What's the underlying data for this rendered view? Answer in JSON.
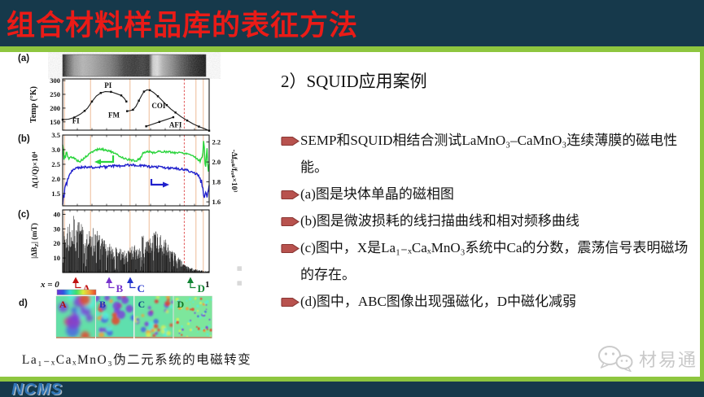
{
  "slide": {
    "header": {
      "title": "组合材料样品库的表征方法"
    },
    "footer": {
      "logo": "NCMS"
    },
    "watermark": {
      "label": "材易通"
    },
    "artifacts": [
      "▦",
      "▦"
    ],
    "colors": {
      "header_bg": "#16394b",
      "accent_green": "#8ec63f",
      "title_red": "#ea1b17",
      "bullet_red": "#b8524e",
      "bullet_border": "#8a3734",
      "logo_blue": "#2f74b5",
      "wm_gray": "#c9c9c9"
    }
  },
  "right_panel": {
    "heading": "2）SQUID应用案例",
    "bullets": [
      {
        "text": "SEMP和SQUID相结合测试LaMnO₃–CaMnO₃连续薄膜的磁电性能。"
      },
      {
        "text": "(a)图是块体单晶的磁相图"
      },
      {
        "text": "(b)图是微波损耗的线扫描曲线和相对频移曲线"
      },
      {
        "text": "(c)图中，X是La₁₋ₓCaₓMnO₃系统中Ca的分数，震荡信号表明磁场的存在。"
      },
      {
        "text": "(d)图中，ABC图像出现强磁化，D中磁化减弱"
      }
    ]
  },
  "figure": {
    "panel_labels": [
      "(a)",
      "(b)",
      "(c)",
      "d)"
    ],
    "caption": "La₁₋ₓCaₓMnO₃伪二元系统的电磁转变",
    "photo_stops": [
      [
        0,
        "#111111"
      ],
      [
        0.03,
        "#555555"
      ],
      [
        0.08,
        "#9a9a9a"
      ],
      [
        0.14,
        "#b5b5b5"
      ],
      [
        0.2,
        "#a8a8a8"
      ],
      [
        0.27,
        "#909090"
      ],
      [
        0.33,
        "#7a7a7a"
      ],
      [
        0.38,
        "#5f5f5f"
      ],
      [
        0.43,
        "#3c3c3c"
      ],
      [
        0.5,
        "#303030"
      ],
      [
        0.56,
        "#3a3a3a"
      ],
      [
        0.6,
        "#2c2c2c"
      ],
      [
        0.63,
        "#cfcfcf"
      ],
      [
        0.66,
        "#e0e0e0"
      ],
      [
        0.7,
        "#b0b0b0"
      ],
      [
        0.76,
        "#8a8a8a"
      ],
      [
        0.83,
        "#565656"
      ],
      [
        0.9,
        "#2e2e2e"
      ],
      [
        0.96,
        "#191919"
      ],
      [
        1,
        "#0d0d0d"
      ]
    ],
    "vlines": {
      "orange": [
        0.012,
        0.19,
        0.46,
        0.59,
        0.91,
        0.96
      ],
      "red_dashed": [
        0.83
      ]
    }
  },
  "chart_data": [
    {
      "panel": "a",
      "type": "line",
      "description": "块体单晶磁相图 (magnetic phase diagram)",
      "ylabel": "Temp (°K)",
      "yticks": [
        150,
        200,
        250,
        300
      ],
      "ylim": [
        120,
        306
      ],
      "xlim": [
        0,
        1
      ],
      "series": [
        {
          "name": "phase-boundary-1",
          "points": [
            [
              0,
              158
            ],
            [
              0.04,
              160
            ],
            [
              0.08,
              166
            ],
            [
              0.12,
              178
            ],
            [
              0.15,
              190
            ],
            [
              0.17,
              200
            ],
            [
              0.2,
              224
            ],
            [
              0.23,
              244
            ],
            [
              0.26,
              255
            ],
            [
              0.29,
              260
            ],
            [
              0.33,
              259
            ],
            [
              0.37,
              252
            ],
            [
              0.4,
              246
            ],
            [
              0.42,
              236
            ],
            [
              0.435,
              224
            ]
          ]
        },
        {
          "name": "phase-boundary-2",
          "points": [
            [
              0.44,
              189
            ],
            [
              0.46,
              191
            ],
            [
              0.48,
              194
            ],
            [
              0.5,
              206
            ],
            [
              0.52,
              227
            ],
            [
              0.54,
              247
            ],
            [
              0.555,
              260
            ],
            [
              0.575,
              266
            ],
            [
              0.595,
              265
            ],
            [
              0.62,
              257
            ],
            [
              0.65,
              243
            ],
            [
              0.68,
              227
            ],
            [
              0.71,
              211
            ],
            [
              0.74,
              196
            ],
            [
              0.77,
              184
            ],
            [
              0.81,
              168
            ],
            [
              0.85,
              155
            ],
            [
              0.89,
              143
            ],
            [
              0.93,
              133
            ],
            [
              0.97,
              125
            ],
            [
              1,
              118
            ]
          ]
        },
        {
          "name": "afi-boundary",
          "points": [
            [
              0.57,
              134
            ],
            [
              0.61,
              141
            ],
            [
              0.66,
              150
            ],
            [
              0.71,
              159
            ],
            [
              0.755,
              167
            ]
          ]
        }
      ],
      "phase_labels": [
        {
          "text": "FI",
          "x": 0.09,
          "T": 145
        },
        {
          "text": "PI",
          "x": 0.31,
          "T": 274
        },
        {
          "text": "FM",
          "x": 0.35,
          "T": 166
        },
        {
          "text": "COI",
          "x": 0.655,
          "T": 200
        },
        {
          "text": "AFI",
          "x": 0.77,
          "T": 131
        }
      ]
    },
    {
      "panel": "b",
      "type": "line",
      "description": "微波损耗线扫描曲线与相对频移曲线",
      "ylabel_left": "Δ(1/Q)×10⁴",
      "yticks_left": [
        1.5,
        2.0,
        2.5,
        3.0,
        3.5
      ],
      "ylim_left": [
        1.08,
        3.5
      ],
      "ylabel_right": "-Δfᵣₑₛ/fᵣₑₛ×10³",
      "yticks_right": [
        1.6,
        1.8,
        2.0,
        2.2
      ],
      "ylim_right": [
        1.56,
        2.27
      ],
      "series": [
        {
          "name": "microwave-loss",
          "axis": "left",
          "color": "#2ad43c",
          "points": [
            [
              0,
              3.12
            ],
            [
              0.01,
              2.72
            ],
            [
              0.025,
              2.9
            ],
            [
              0.04,
              2.68
            ],
            [
              0.06,
              2.76
            ],
            [
              0.08,
              2.7
            ],
            [
              0.1,
              2.63
            ],
            [
              0.12,
              2.6
            ],
            [
              0.14,
              2.68
            ],
            [
              0.17,
              2.8
            ],
            [
              0.2,
              2.92
            ],
            [
              0.23,
              3.0
            ],
            [
              0.26,
              3.02
            ],
            [
              0.29,
              2.99
            ],
            [
              0.32,
              2.96
            ],
            [
              0.35,
              2.88
            ],
            [
              0.38,
              2.8
            ],
            [
              0.41,
              2.73
            ],
            [
              0.44,
              2.67
            ],
            [
              0.47,
              2.64
            ],
            [
              0.5,
              2.62
            ],
            [
              0.53,
              2.7
            ],
            [
              0.55,
              2.9
            ],
            [
              0.58,
              2.94
            ],
            [
              0.61,
              2.9
            ],
            [
              0.64,
              2.92
            ],
            [
              0.68,
              2.94
            ],
            [
              0.72,
              2.92
            ],
            [
              0.76,
              2.9
            ],
            [
              0.8,
              2.9
            ],
            [
              0.84,
              2.88
            ],
            [
              0.87,
              2.84
            ],
            [
              0.9,
              2.76
            ],
            [
              0.92,
              2.68
            ],
            [
              0.94,
              2.6
            ],
            [
              0.955,
              2.9
            ],
            [
              0.965,
              3.28
            ],
            [
              0.975,
              2.3
            ],
            [
              0.985,
              3.05
            ],
            [
              0.993,
              2.2
            ],
            [
              1,
              2.6
            ]
          ]
        },
        {
          "name": "relative-frequency-shift",
          "axis": "right",
          "color": "#2020cc",
          "points": [
            [
              0,
              1.6
            ],
            [
              0.01,
              1.68
            ],
            [
              0.02,
              1.75
            ],
            [
              0.035,
              1.83
            ],
            [
              0.05,
              1.88
            ],
            [
              0.07,
              1.92
            ],
            [
              0.1,
              1.94
            ],
            [
              0.14,
              1.95
            ],
            [
              0.18,
              1.95
            ],
            [
              0.22,
              1.94
            ],
            [
              0.26,
              1.95
            ],
            [
              0.3,
              1.95
            ],
            [
              0.35,
              1.96
            ],
            [
              0.4,
              1.96
            ],
            [
              0.45,
              1.97
            ],
            [
              0.5,
              1.97
            ],
            [
              0.55,
              1.96
            ],
            [
              0.6,
              1.95
            ],
            [
              0.65,
              1.95
            ],
            [
              0.7,
              1.94
            ],
            [
              0.75,
              1.94
            ],
            [
              0.8,
              1.93
            ],
            [
              0.84,
              1.92
            ],
            [
              0.88,
              1.9
            ],
            [
              0.91,
              1.88
            ],
            [
              0.93,
              1.86
            ],
            [
              0.95,
              1.8
            ],
            [
              0.96,
              1.68
            ],
            [
              0.97,
              1.62
            ],
            [
              0.98,
              1.7
            ],
            [
              0.99,
              1.65
            ],
            [
              1,
              1.72
            ]
          ]
        }
      ]
    },
    {
      "panel": "c",
      "type": "line-noise",
      "description": "震荡信号表明磁场的存在",
      "ylabel": {
        "pre": "|ΔB",
        "sub": "Z",
        "post": "| (mT)"
      },
      "yticks": [
        10,
        20,
        30,
        40
      ],
      "ylim": [
        0,
        43
      ],
      "xlabel_prefix": "x = 0",
      "xlabel_end": "1",
      "envelope": [
        [
          0,
          26
        ],
        [
          0.03,
          36
        ],
        [
          0.06,
          40
        ],
        [
          0.1,
          38
        ],
        [
          0.14,
          32
        ],
        [
          0.18,
          29
        ],
        [
          0.22,
          33
        ],
        [
          0.26,
          25
        ],
        [
          0.3,
          21
        ],
        [
          0.34,
          19
        ],
        [
          0.38,
          17
        ],
        [
          0.42,
          15
        ],
        [
          0.46,
          17
        ],
        [
          0.5,
          21
        ],
        [
          0.54,
          26
        ],
        [
          0.58,
          24
        ],
        [
          0.62,
          29
        ],
        [
          0.66,
          27
        ],
        [
          0.7,
          23
        ],
        [
          0.74,
          17
        ],
        [
          0.78,
          12
        ],
        [
          0.82,
          7
        ],
        [
          0.86,
          4
        ],
        [
          0.9,
          2.5
        ],
        [
          0.94,
          1.5
        ],
        [
          1,
          1
        ]
      ],
      "markers": [
        {
          "label": "A",
          "x": 0.089,
          "color": "#c01010"
        },
        {
          "label": "B",
          "x": 0.317,
          "color": "#7733cc"
        },
        {
          "label": "C",
          "x": 0.461,
          "color": "#2233cc"
        },
        {
          "label": "D",
          "x": 0.872,
          "color": "#128433"
        }
      ]
    },
    {
      "panel": "d",
      "type": "heatmap-maps",
      "description": "ABC图像出现强磁化，D中磁化减弱",
      "colorbar": [
        "#6a2fd8",
        "#2f55e0",
        "#2fd8d8",
        "#3ee06a",
        "#d8ee3a",
        "#f2a03a",
        "#e8452a"
      ],
      "palette": [
        "#e8452a",
        "#7b42d8",
        "#f2a03a",
        "#4b66e0",
        "#55eed8",
        "#d8ee55"
      ],
      "bg": [
        "#63dfa8",
        "#5fdfae",
        "#6ce2a4",
        "#7de69c"
      ],
      "maps": [
        {
          "label": "A",
          "label_color": "#aa1111",
          "blobs": 16,
          "rmin": 4,
          "rmax": 9,
          "blur": 2,
          "seed": 11,
          "weights": [
            0.3,
            0.28,
            0.14,
            0.1,
            0.1,
            0.08
          ]
        },
        {
          "label": "B",
          "label_color": "#2233bb",
          "blobs": 28,
          "rmin": 2.5,
          "rmax": 5.5,
          "blur": 1.4,
          "seed": 22,
          "weights": [
            0.26,
            0.28,
            0.1,
            0.12,
            0.14,
            0.1
          ]
        },
        {
          "label": "C",
          "label_color": "#114488",
          "blobs": 40,
          "rmin": 1.8,
          "rmax": 3.5,
          "blur": 1,
          "seed": 33,
          "weights": [
            0.24,
            0.24,
            0.08,
            0.12,
            0.2,
            0.12
          ]
        },
        {
          "label": "D",
          "label_color": "#117722",
          "blobs": 64,
          "rmin": 0.8,
          "rmax": 2,
          "blur": 0.5,
          "seed": 44,
          "weights": [
            0.15,
            0.12,
            0.08,
            0.08,
            0.35,
            0.22
          ]
        }
      ]
    }
  ]
}
